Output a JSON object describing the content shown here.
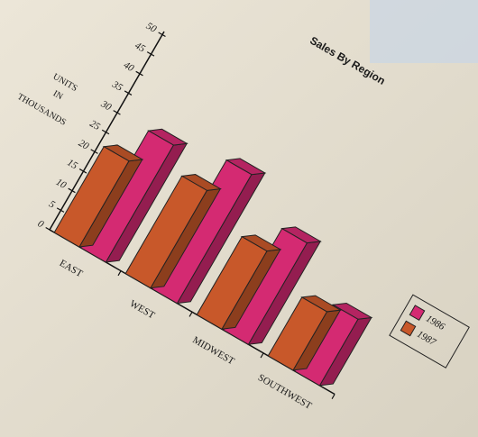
{
  "chart_data": {
    "type": "bar",
    "title": "Sales By Region",
    "ylabel": [
      "UNITS",
      "IN",
      "THOUSANDS"
    ],
    "categories": [
      "EAST",
      "WEST",
      "MIDWEST",
      "SOUTHWEST"
    ],
    "series": [
      {
        "name": "1987",
        "color": "#c8582a",
        "values": [
          22,
          25,
          20,
          15
        ]
      },
      {
        "name": "1986",
        "color": "#d42a72",
        "values": [
          30,
          33,
          26,
          17
        ]
      }
    ],
    "ylim": [
      0,
      50
    ],
    "yticks": [
      0,
      5,
      10,
      15,
      20,
      25,
      30,
      35,
      40,
      45,
      50
    ],
    "legend_order": [
      "1986",
      "1987"
    ]
  }
}
